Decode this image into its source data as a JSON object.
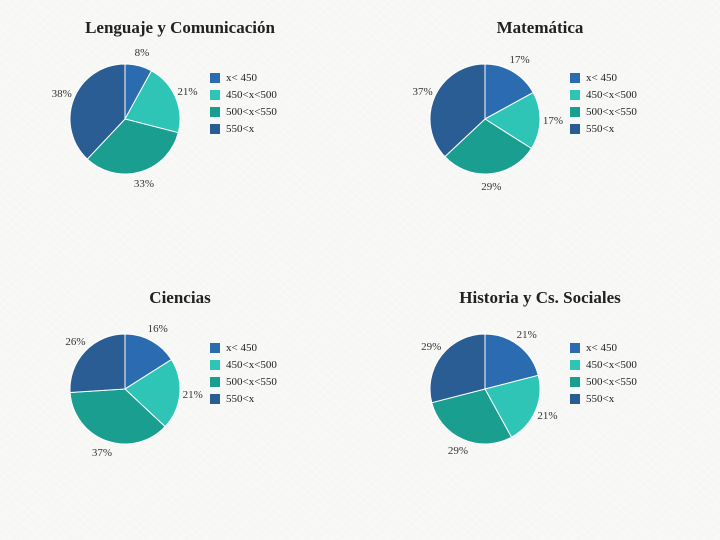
{
  "background_color": "#f8f8f6",
  "legend": {
    "labels": [
      "x< 450",
      "450<x<500",
      "500<x<550",
      "550<x"
    ],
    "colors": [
      "#2b6cb0",
      "#2ec4b6",
      "#1a9e8f",
      "#2a5d94"
    ],
    "swatch_size": 10,
    "fontsize": 11
  },
  "title_fontsize": 17,
  "label_fontsize": 11,
  "charts": [
    {
      "title": "Lenguaje y Comunicación",
      "type": "pie",
      "start_angle": -90,
      "radius": 55,
      "slices": [
        {
          "label": "x< 450",
          "value": 8,
          "pct_text": "8%",
          "color": "#2b6cb0"
        },
        {
          "label": "450<x<500",
          "value": 21,
          "pct_text": "21%",
          "color": "#2ec4b6"
        },
        {
          "label": "500<x<550",
          "value": 33,
          "pct_text": "33%",
          "color": "#1a9e8f"
        },
        {
          "label": "550<x",
          "value": 38,
          "pct_text": "38%",
          "color": "#2a5d94"
        }
      ],
      "label_offset": 68
    },
    {
      "title": "Matemática",
      "type": "pie",
      "start_angle": -90,
      "radius": 55,
      "slices": [
        {
          "label": "x< 450",
          "value": 17,
          "pct_text": "17%",
          "color": "#2b6cb0"
        },
        {
          "label": "450<x<500",
          "value": 17,
          "pct_text": "17%",
          "color": "#2ec4b6"
        },
        {
          "label": "500<x<550",
          "value": 29,
          "pct_text": "29%",
          "color": "#1a9e8f"
        },
        {
          "label": "550<x",
          "value": 37,
          "pct_text": "37%",
          "color": "#2a5d94"
        }
      ],
      "label_offset": 68
    },
    {
      "title": "Ciencias",
      "type": "pie",
      "start_angle": -90,
      "radius": 55,
      "slices": [
        {
          "label": "x< 450",
          "value": 16,
          "pct_text": "16%",
          "color": "#2b6cb0"
        },
        {
          "label": "450<x<500",
          "value": 21,
          "pct_text": "21%",
          "color": "#2ec4b6"
        },
        {
          "label": "500<x<550",
          "value": 37,
          "pct_text": "37%",
          "color": "#1a9e8f"
        },
        {
          "label": "550<x",
          "value": 26,
          "pct_text": "26%",
          "color": "#2a5d94"
        }
      ],
      "label_offset": 68
    },
    {
      "title": "Historia y Cs. Sociales",
      "type": "pie",
      "start_angle": -90,
      "radius": 55,
      "slices": [
        {
          "label": "x< 450",
          "value": 21,
          "pct_text": "21%",
          "color": "#2b6cb0"
        },
        {
          "label": "450<x<500",
          "value": 21,
          "pct_text": "21%",
          "color": "#2ec4b6"
        },
        {
          "label": "500<x<550",
          "value": 29,
          "pct_text": "29%",
          "color": "#1a9e8f"
        },
        {
          "label": "550<x",
          "value": 29,
          "pct_text": "29%",
          "color": "#2a5d94"
        }
      ],
      "label_offset": 68
    }
  ]
}
